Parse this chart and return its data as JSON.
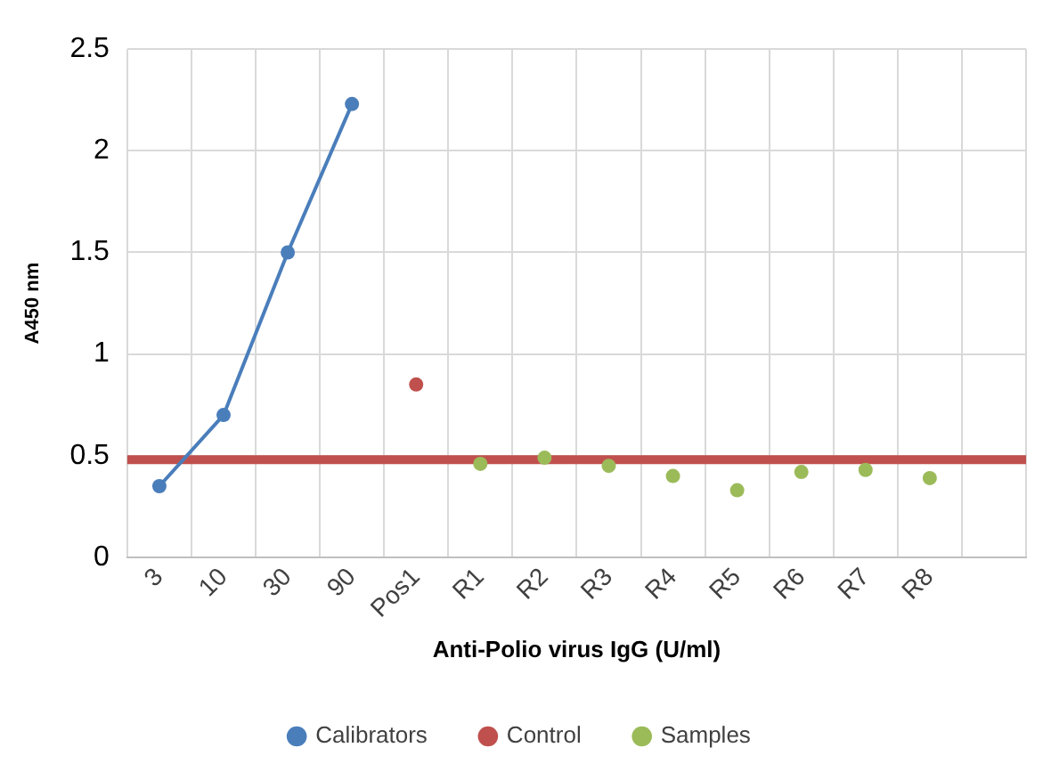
{
  "chart_data": {
    "type": "line",
    "xlabel": "Anti-Polio virus IgG (U/ml)",
    "ylabel": "A450 nm",
    "categories": [
      "3",
      "10",
      "30",
      "90",
      "Pos1",
      "R1",
      "R2",
      "R3",
      "R4",
      "R5",
      "R6",
      "R7",
      "R8",
      null
    ],
    "series": [
      {
        "name": "Calibrators",
        "color": "#4a7ebb",
        "values": [
          0.35,
          0.7,
          1.5,
          2.23,
          null,
          null,
          null,
          null,
          null,
          null,
          null,
          null,
          null,
          null
        ]
      },
      {
        "name": "Control",
        "type": "scatter",
        "color": "#c0504d",
        "values": [
          null,
          null,
          null,
          null,
          0.85,
          null,
          null,
          null,
          null,
          null,
          null,
          null,
          null,
          null
        ]
      },
      {
        "name": "Samples",
        "type": "scatter",
        "color": "#9bbb59",
        "values": [
          null,
          null,
          null,
          null,
          null,
          0.46,
          0.49,
          0.45,
          0.4,
          0.33,
          0.42,
          0.43,
          0.39,
          null
        ]
      }
    ],
    "ylim": [
      0,
      2.5
    ],
    "yticks": [
      0,
      0.5,
      1,
      1.5,
      2,
      2.5
    ],
    "ref_lines": [
      {
        "axis": "y",
        "value": 0.48,
        "color": "#c0504d"
      }
    ],
    "grid": true,
    "legend": "bottom",
    "marker": "circle"
  }
}
